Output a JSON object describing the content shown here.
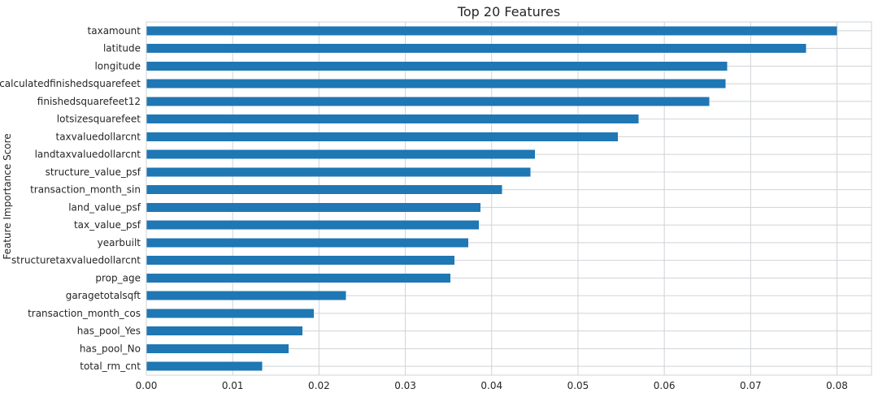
{
  "chart_data": {
    "type": "bar",
    "orientation": "horizontal",
    "title": "Top 20 Features",
    "xlabel": "",
    "ylabel": "Feature Importance Score",
    "xlim": [
      0,
      0.084
    ],
    "xticks": [
      0.0,
      0.01,
      0.02,
      0.03,
      0.04,
      0.05,
      0.06,
      0.07,
      0.08
    ],
    "xtick_labels": [
      "0.00",
      "0.01",
      "0.02",
      "0.03",
      "0.04",
      "0.05",
      "0.06",
      "0.07",
      "0.08"
    ],
    "grid": true,
    "bar_color": "#1f77b4",
    "categories": [
      "taxamount",
      "latitude",
      "longitude",
      "calculatedfinishedsquarefeet",
      "finishedsquarefeet12",
      "lotsizesquarefeet",
      "taxvaluedollarcnt",
      "landtaxvaluedollarcnt",
      "structure_value_psf",
      "transaction_month_sin",
      "land_value_psf",
      "tax_value_psf",
      "yearbuilt",
      "structuretaxvaluedollarcnt",
      "prop_age",
      "garagetotalsqft",
      "transaction_month_cos",
      "has_pool_Yes",
      "has_pool_No",
      "total_rm_cnt"
    ],
    "values": [
      0.08,
      0.0764,
      0.0673,
      0.0671,
      0.0652,
      0.057,
      0.0546,
      0.045,
      0.0445,
      0.0412,
      0.0387,
      0.0385,
      0.0373,
      0.0357,
      0.0352,
      0.0231,
      0.0194,
      0.0181,
      0.0165,
      0.0134
    ]
  }
}
